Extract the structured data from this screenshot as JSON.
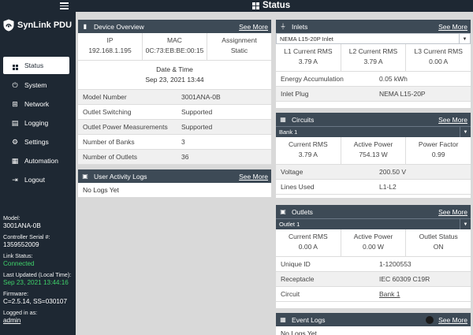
{
  "topbar": {
    "title": "Status"
  },
  "brand": {
    "name": "SynLink PDU"
  },
  "nav": [
    {
      "label": "Status",
      "icon": "grid-icon"
    },
    {
      "label": "System",
      "icon": "plug-icon"
    },
    {
      "label": "Network",
      "icon": "network-icon"
    },
    {
      "label": "Logging",
      "icon": "document-icon"
    },
    {
      "label": "Settings",
      "icon": "gear-icon"
    },
    {
      "label": "Automation",
      "icon": "calendar-icon"
    },
    {
      "label": "Logout",
      "icon": "logout-icon"
    }
  ],
  "sidebar_info": {
    "model_label": "Model:",
    "model": "3001ANA-0B",
    "serial_label": "Controller Serial #:",
    "serial": "1359552009",
    "link_label": "Link Status:",
    "link": "Connected",
    "updated_label": "Last Updated (Local Time):",
    "updated": "Sep 23, 2021 13:44:16",
    "firmware_label": "Firmware:",
    "firmware": "C=2.5.14, SS=030107",
    "logged_label": "Logged in as:",
    "logged": "admin"
  },
  "device_overview": {
    "title": "Device Overview",
    "see_more": "See More",
    "ip_label": "IP",
    "ip": "192.168.1.195",
    "mac_label": "MAC",
    "mac": "0C:73:EB:BE:00:15",
    "assign_label": "Assignment",
    "assign": "Static",
    "dt_label": "Date & Time",
    "dt": "Sep 23, 2021 13:44",
    "rows": [
      {
        "k": "Model Number",
        "v": "3001ANA-0B"
      },
      {
        "k": "Outlet Switching",
        "v": "Supported"
      },
      {
        "k": "Outlet Power Measurements",
        "v": "Supported"
      },
      {
        "k": "Number of Banks",
        "v": "3"
      },
      {
        "k": "Number of Outlets",
        "v": "36"
      }
    ]
  },
  "user_logs": {
    "title": "User Activity Logs",
    "see_more": "See More",
    "body": "No Logs Yet"
  },
  "inlets": {
    "title": "Inlets",
    "see_more": "See More",
    "selected": "NEMA L15-20P Inlet",
    "h1": "L1 Current RMS",
    "v1": "3.79 A",
    "h2": "L2 Current RMS",
    "v2": "3.79 A",
    "h3": "L3 Current RMS",
    "v3": "0.00 A",
    "rows": [
      {
        "k": "Energy Accumulation",
        "v": "0.05 kWh"
      },
      {
        "k": "Inlet Plug",
        "v": "NEMA L15-20P"
      }
    ]
  },
  "circuits": {
    "title": "Circuits",
    "see_more": "See More",
    "selected": "Bank 1",
    "h1": "Current RMS",
    "v1": "3.79 A",
    "h2": "Active Power",
    "v2": "754.13 W",
    "h3": "Power Factor",
    "v3": "0.99",
    "rows": [
      {
        "k": "Voltage",
        "v": "200.50 V"
      },
      {
        "k": "Lines Used",
        "v": "L1-L2"
      }
    ]
  },
  "outlets": {
    "title": "Outlets",
    "see_more": "See More",
    "selected": "Outlet 1",
    "h1": "Current RMS",
    "v1": "0.00 A",
    "h2": "Active Power",
    "v2": "0.00 W",
    "h3": "Outlet Status",
    "v3": "ON",
    "rows": [
      {
        "k": "Unique ID",
        "v": "1-1200553"
      },
      {
        "k": "Receptacle",
        "v": "IEC 60309 C19R"
      },
      {
        "k": "Circuit",
        "v": "Bank 1"
      }
    ]
  },
  "event_logs": {
    "title": "Event Logs",
    "see_more": "See More",
    "body": "No Logs Yet"
  }
}
